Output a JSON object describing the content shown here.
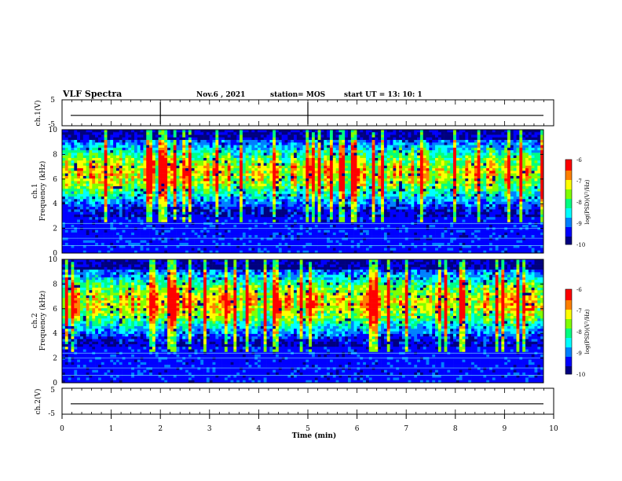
{
  "header": {
    "title": "VLF Spectra",
    "date": "Nov.6 , 2021",
    "station": "station= MOS",
    "start": "start UT = 13: 10: 1"
  },
  "chart_data": [
    {
      "type": "line",
      "name": "ch1-voltage",
      "ylabel": "ch.1(V)",
      "ylim": [
        -5,
        5
      ],
      "yticks": [
        "5",
        "-5"
      ],
      "baseline": -1,
      "spikes_at_min": [
        2.0,
        5.0
      ]
    },
    {
      "type": "heatmap",
      "name": "ch1-spectrogram",
      "ylabel": "ch.1\nFrequency (kHz)",
      "ylabel_line1": "ch.1",
      "ylabel_line2": "Frequency (kHz)",
      "ylim": [
        0,
        10
      ],
      "yticks": [
        "0",
        "2",
        "4",
        "6",
        "8",
        "10"
      ],
      "band_center_khz": 6.5,
      "colorbar": {
        "label": "log(PSD)(V²/Hz)",
        "min": -10,
        "max": -6,
        "ticks": [
          "-6",
          "-7",
          "-8",
          "-9",
          "-10"
        ]
      }
    },
    {
      "type": "heatmap",
      "name": "ch2-spectrogram",
      "ylabel_line1": "ch.2",
      "ylabel_line2": "Frequency (kHz)",
      "ylim": [
        0,
        10
      ],
      "yticks": [
        "0",
        "2",
        "4",
        "6",
        "8",
        "10"
      ],
      "band_center_khz": 6.5,
      "colorbar": {
        "label": "log(PSD)(V²/Hz)",
        "min": -10,
        "max": -6,
        "ticks": [
          "-6",
          "-7",
          "-8",
          "-9",
          "-10"
        ]
      }
    },
    {
      "type": "line",
      "name": "ch2-voltage",
      "ylabel": "ch.2(V)",
      "ylim": [
        -5,
        5
      ],
      "yticks": [
        "5",
        "-5"
      ],
      "baseline": -1
    }
  ],
  "xaxis": {
    "label": "Time (min)",
    "range": [
      0,
      10
    ],
    "ticks": [
      "0",
      "1",
      "2",
      "3",
      "4",
      "5",
      "6",
      "7",
      "8",
      "9",
      "10"
    ]
  },
  "colors": {
    "colormap": [
      "#000080",
      "#0000ff",
      "#0080ff",
      "#00ffff",
      "#00ff80",
      "#80ff00",
      "#ffff00",
      "#ff8000",
      "#ff0000",
      "#ffffff"
    ]
  }
}
